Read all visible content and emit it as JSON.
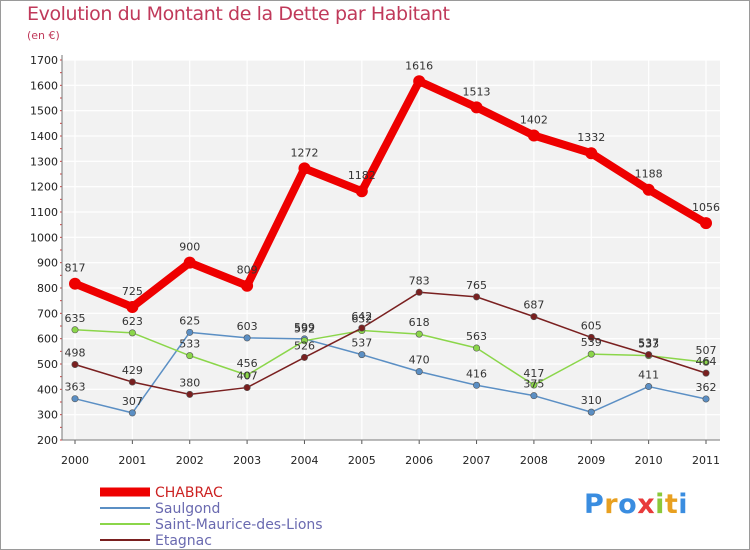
{
  "chart_data": {
    "type": "line",
    "title": "Evolution du Montant de la Dette par Habitant",
    "subtitle": "(en €)",
    "x": [
      "2000",
      "2001",
      "2002",
      "2003",
      "2004",
      "2005",
      "2006",
      "2007",
      "2008",
      "2009",
      "2010",
      "2011"
    ],
    "ylim": [
      200,
      1700
    ],
    "yticks": [
      200,
      300,
      400,
      500,
      600,
      700,
      800,
      900,
      1000,
      1100,
      1200,
      1300,
      1400,
      1500,
      1600,
      1700
    ],
    "grid": true,
    "legend": "bottom-left",
    "series": [
      {
        "name": "CHABRAC",
        "color": "#ee0000",
        "values": [
          817,
          725,
          900,
          809,
          1272,
          1182,
          1616,
          1513,
          1402,
          1332,
          1188,
          1056
        ]
      },
      {
        "name": "Saulgond",
        "color": "#5b8fc4",
        "values": [
          363,
          307,
          625,
          603,
          599,
          537,
          470,
          416,
          375,
          310,
          411,
          362
        ]
      },
      {
        "name": "Saint-Maurice-des-Lions",
        "color": "#8bd64a",
        "values": [
          635,
          623,
          533,
          456,
          592,
          632,
          618,
          563,
          417,
          539,
          533,
          507
        ]
      },
      {
        "name": "Etagnac",
        "color": "#7a2020",
        "values": [
          498,
          429,
          380,
          407,
          526,
          642,
          783,
          765,
          687,
          605,
          537,
          464
        ]
      }
    ]
  },
  "branding": {
    "logo_letters": [
      "P",
      "r",
      "o",
      "x",
      "i",
      "t",
      "i"
    ],
    "logo_colors": [
      "#3a8de0",
      "#e8a020",
      "#3a8de0",
      "#e83a3a",
      "#8bc83a",
      "#e8a020",
      "#3a8de0"
    ]
  }
}
